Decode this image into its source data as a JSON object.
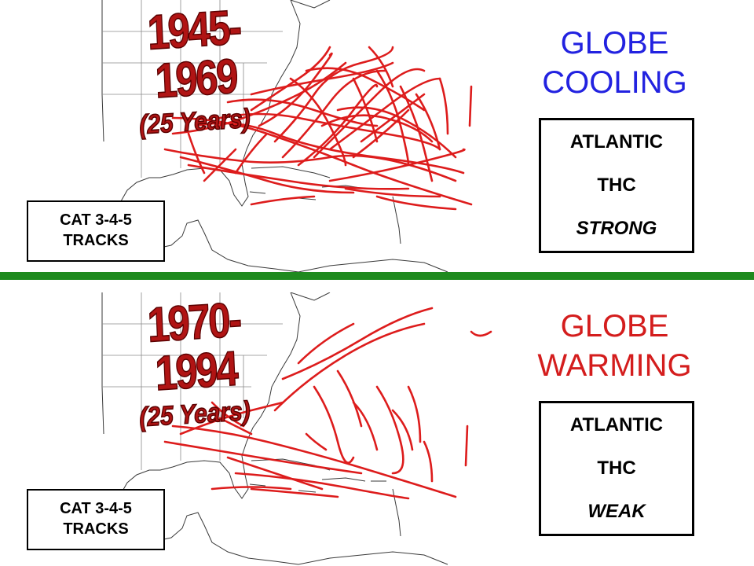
{
  "top": {
    "period": "1945-1969",
    "duration": "(25 Years)",
    "globe_line1": "GLOBE",
    "globe_line2": "COOLING",
    "thc": {
      "line1": "ATLANTIC",
      "line2": "THC",
      "state": "STRONG"
    },
    "cat": {
      "line1": "CAT 3-4-5",
      "line2": "TRACKS"
    }
  },
  "bottom": {
    "period": "1970-1994",
    "duration": "(25 Years)",
    "globe_line1": "GLOBE",
    "globe_line2": "WARMING",
    "thc": {
      "line1": "ATLANTIC",
      "line2": "THC",
      "state": "WEAK"
    },
    "cat": {
      "line1": "CAT 3-4-5",
      "line2": "TRACKS"
    }
  },
  "colors": {
    "track": "#dd1c1c",
    "divider": "#1e8a1e",
    "cooling_text": "#2222e0",
    "warming_text": "#d41d1d",
    "map_lines": "#3a3a3a"
  },
  "icons": [
    "hurricane-tracks-map"
  ]
}
